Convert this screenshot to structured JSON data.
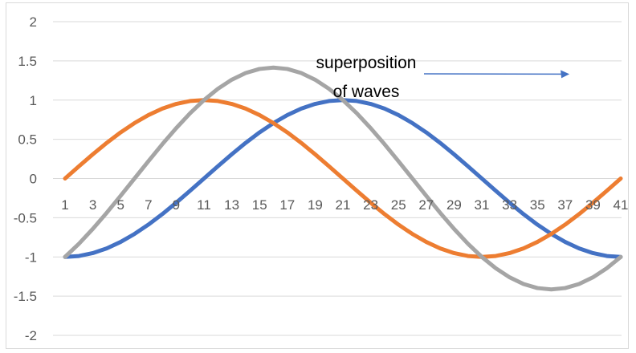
{
  "chart_data": {
    "type": "line",
    "x": [
      1,
      2,
      3,
      4,
      5,
      6,
      7,
      8,
      9,
      10,
      11,
      12,
      13,
      14,
      15,
      16,
      17,
      18,
      19,
      20,
      21,
      22,
      23,
      24,
      25,
      26,
      27,
      28,
      29,
      30,
      31,
      32,
      33,
      34,
      35,
      36,
      37,
      38,
      39,
      40,
      41
    ],
    "x_tick_labels": [
      "1",
      "3",
      "5",
      "7",
      "9",
      "11",
      "13",
      "15",
      "17",
      "19",
      "21",
      "23",
      "25",
      "27",
      "29",
      "31",
      "33",
      "35",
      "37",
      "39",
      "41"
    ],
    "ylim": [
      -2,
      2
    ],
    "y_ticks": [
      2,
      1.5,
      1,
      0.5,
      0,
      -0.5,
      -1,
      -1.5,
      -2
    ],
    "y_tick_labels": [
      "2",
      "1.5",
      "1",
      "0.5",
      "0",
      "-0.5",
      "-1",
      "-1.5",
      "-2"
    ],
    "grid": "horizontal",
    "series": [
      {
        "color": "#4472c4",
        "values": [
          -1,
          -0.988,
          -0.951,
          -0.891,
          -0.809,
          -0.707,
          -0.588,
          -0.454,
          -0.309,
          -0.156,
          0,
          0.156,
          0.309,
          0.454,
          0.588,
          0.707,
          0.809,
          0.891,
          0.951,
          0.988,
          1,
          0.988,
          0.951,
          0.891,
          0.809,
          0.707,
          0.588,
          0.454,
          0.309,
          0.156,
          0,
          -0.156,
          -0.309,
          -0.454,
          -0.588,
          -0.707,
          -0.809,
          -0.891,
          -0.951,
          -0.988,
          -1
        ]
      },
      {
        "color": "#ed7d31",
        "values": [
          0,
          0.156,
          0.309,
          0.454,
          0.588,
          0.707,
          0.809,
          0.891,
          0.951,
          0.988,
          1,
          0.988,
          0.951,
          0.891,
          0.809,
          0.707,
          0.588,
          0.454,
          0.309,
          0.156,
          0,
          -0.156,
          -0.309,
          -0.454,
          -0.588,
          -0.707,
          -0.809,
          -0.891,
          -0.951,
          -0.988,
          -1,
          -0.988,
          -0.951,
          -0.891,
          -0.809,
          -0.707,
          -0.588,
          -0.454,
          -0.309,
          -0.156,
          0
        ]
      },
      {
        "color": "#a5a5a5",
        "values": [
          -1,
          -0.832,
          -0.642,
          -0.437,
          -0.221,
          0,
          0.221,
          0.437,
          0.642,
          0.832,
          1,
          1.144,
          1.26,
          1.345,
          1.397,
          1.414,
          1.397,
          1.345,
          1.26,
          1.144,
          1,
          0.832,
          0.642,
          0.437,
          0.221,
          0,
          -0.221,
          -0.437,
          -0.642,
          -0.832,
          -1,
          -1.144,
          -1.26,
          -1.345,
          -1.397,
          -1.414,
          -1.397,
          -1.345,
          -1.26,
          -1.144,
          -1
        ]
      }
    ],
    "annotation": {
      "lines": [
        "superposition",
        "of waves"
      ],
      "points_to": {
        "x": 38,
        "y": 1.3
      }
    }
  }
}
